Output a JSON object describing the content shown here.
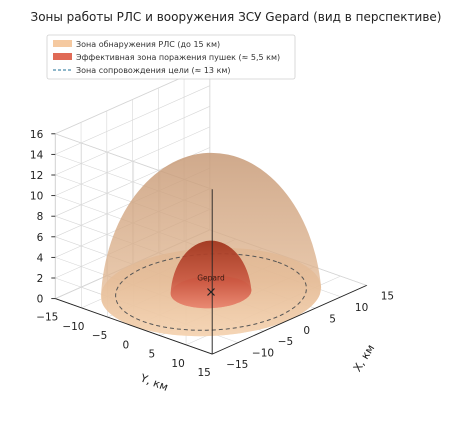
{
  "chart_data": {
    "type": "3d-surface",
    "title": "Зоны работы РЛС и вооружения ЗСУ Gepard (вид в перспективе)",
    "legend": [
      {
        "label": "Зона обнаружения РЛС (до 15 км)",
        "color": "#f5c9a0",
        "style": "patch"
      },
      {
        "label": "Эффективная зона поражения пушек (≈ 5,5 км)",
        "color": "#e06a56",
        "style": "patch"
      },
      {
        "label": "Зона сопровождения цели (≈ 13 км)",
        "color": "#4a8cab",
        "style": "dashed-line"
      }
    ],
    "legend_position": "top-left",
    "grid": true,
    "axes": {
      "x": {
        "label": "X, км",
        "lim": [
          -15,
          15
        ],
        "ticks": [
          "−15",
          "−10",
          "−5",
          "0",
          "5",
          "10",
          "15"
        ]
      },
      "y": {
        "label": "Y, км",
        "lim": [
          -15,
          15
        ],
        "ticks": [
          "−15",
          "−10",
          "−5",
          "0",
          "5",
          "10",
          "15"
        ]
      },
      "z": {
        "label": "",
        "lim": [
          0,
          16
        ],
        "ticks": [
          "0",
          "2",
          "4",
          "6",
          "8",
          "10",
          "12",
          "14",
          "16"
        ]
      }
    },
    "series": [
      {
        "name": "Зона обнаружения РЛС (до 15 км)",
        "shape": "hemisphere",
        "radius_km": 15,
        "center": [
          0,
          0,
          0
        ],
        "color": "#d9a57c"
      },
      {
        "name": "Эффективная зона поражения пушек (≈ 5,5 км)",
        "shape": "hemisphere",
        "radius_km": 5.5,
        "center": [
          0,
          0,
          0
        ],
        "color": "#c9553f"
      },
      {
        "name": "Зона сопровождения цели (≈ 13 км)",
        "shape": "circle",
        "radius_km": 13,
        "z": 0,
        "color": "#555555"
      }
    ],
    "annotations": [
      {
        "text": "Gepard",
        "x": 0,
        "y": 0,
        "z": 1,
        "marker": "x"
      }
    ]
  }
}
